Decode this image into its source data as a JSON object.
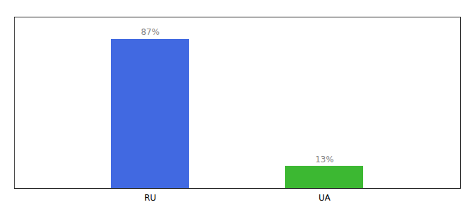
{
  "chart_data": {
    "type": "bar",
    "categories": [
      "RU",
      "UA"
    ],
    "values": [
      87,
      13
    ],
    "colors": [
      "#4169e1",
      "#3cb832"
    ],
    "value_labels": [
      "87%",
      "13%"
    ],
    "data_labels": true,
    "ylim": [
      0,
      100
    ],
    "tick_labels": "x"
  }
}
